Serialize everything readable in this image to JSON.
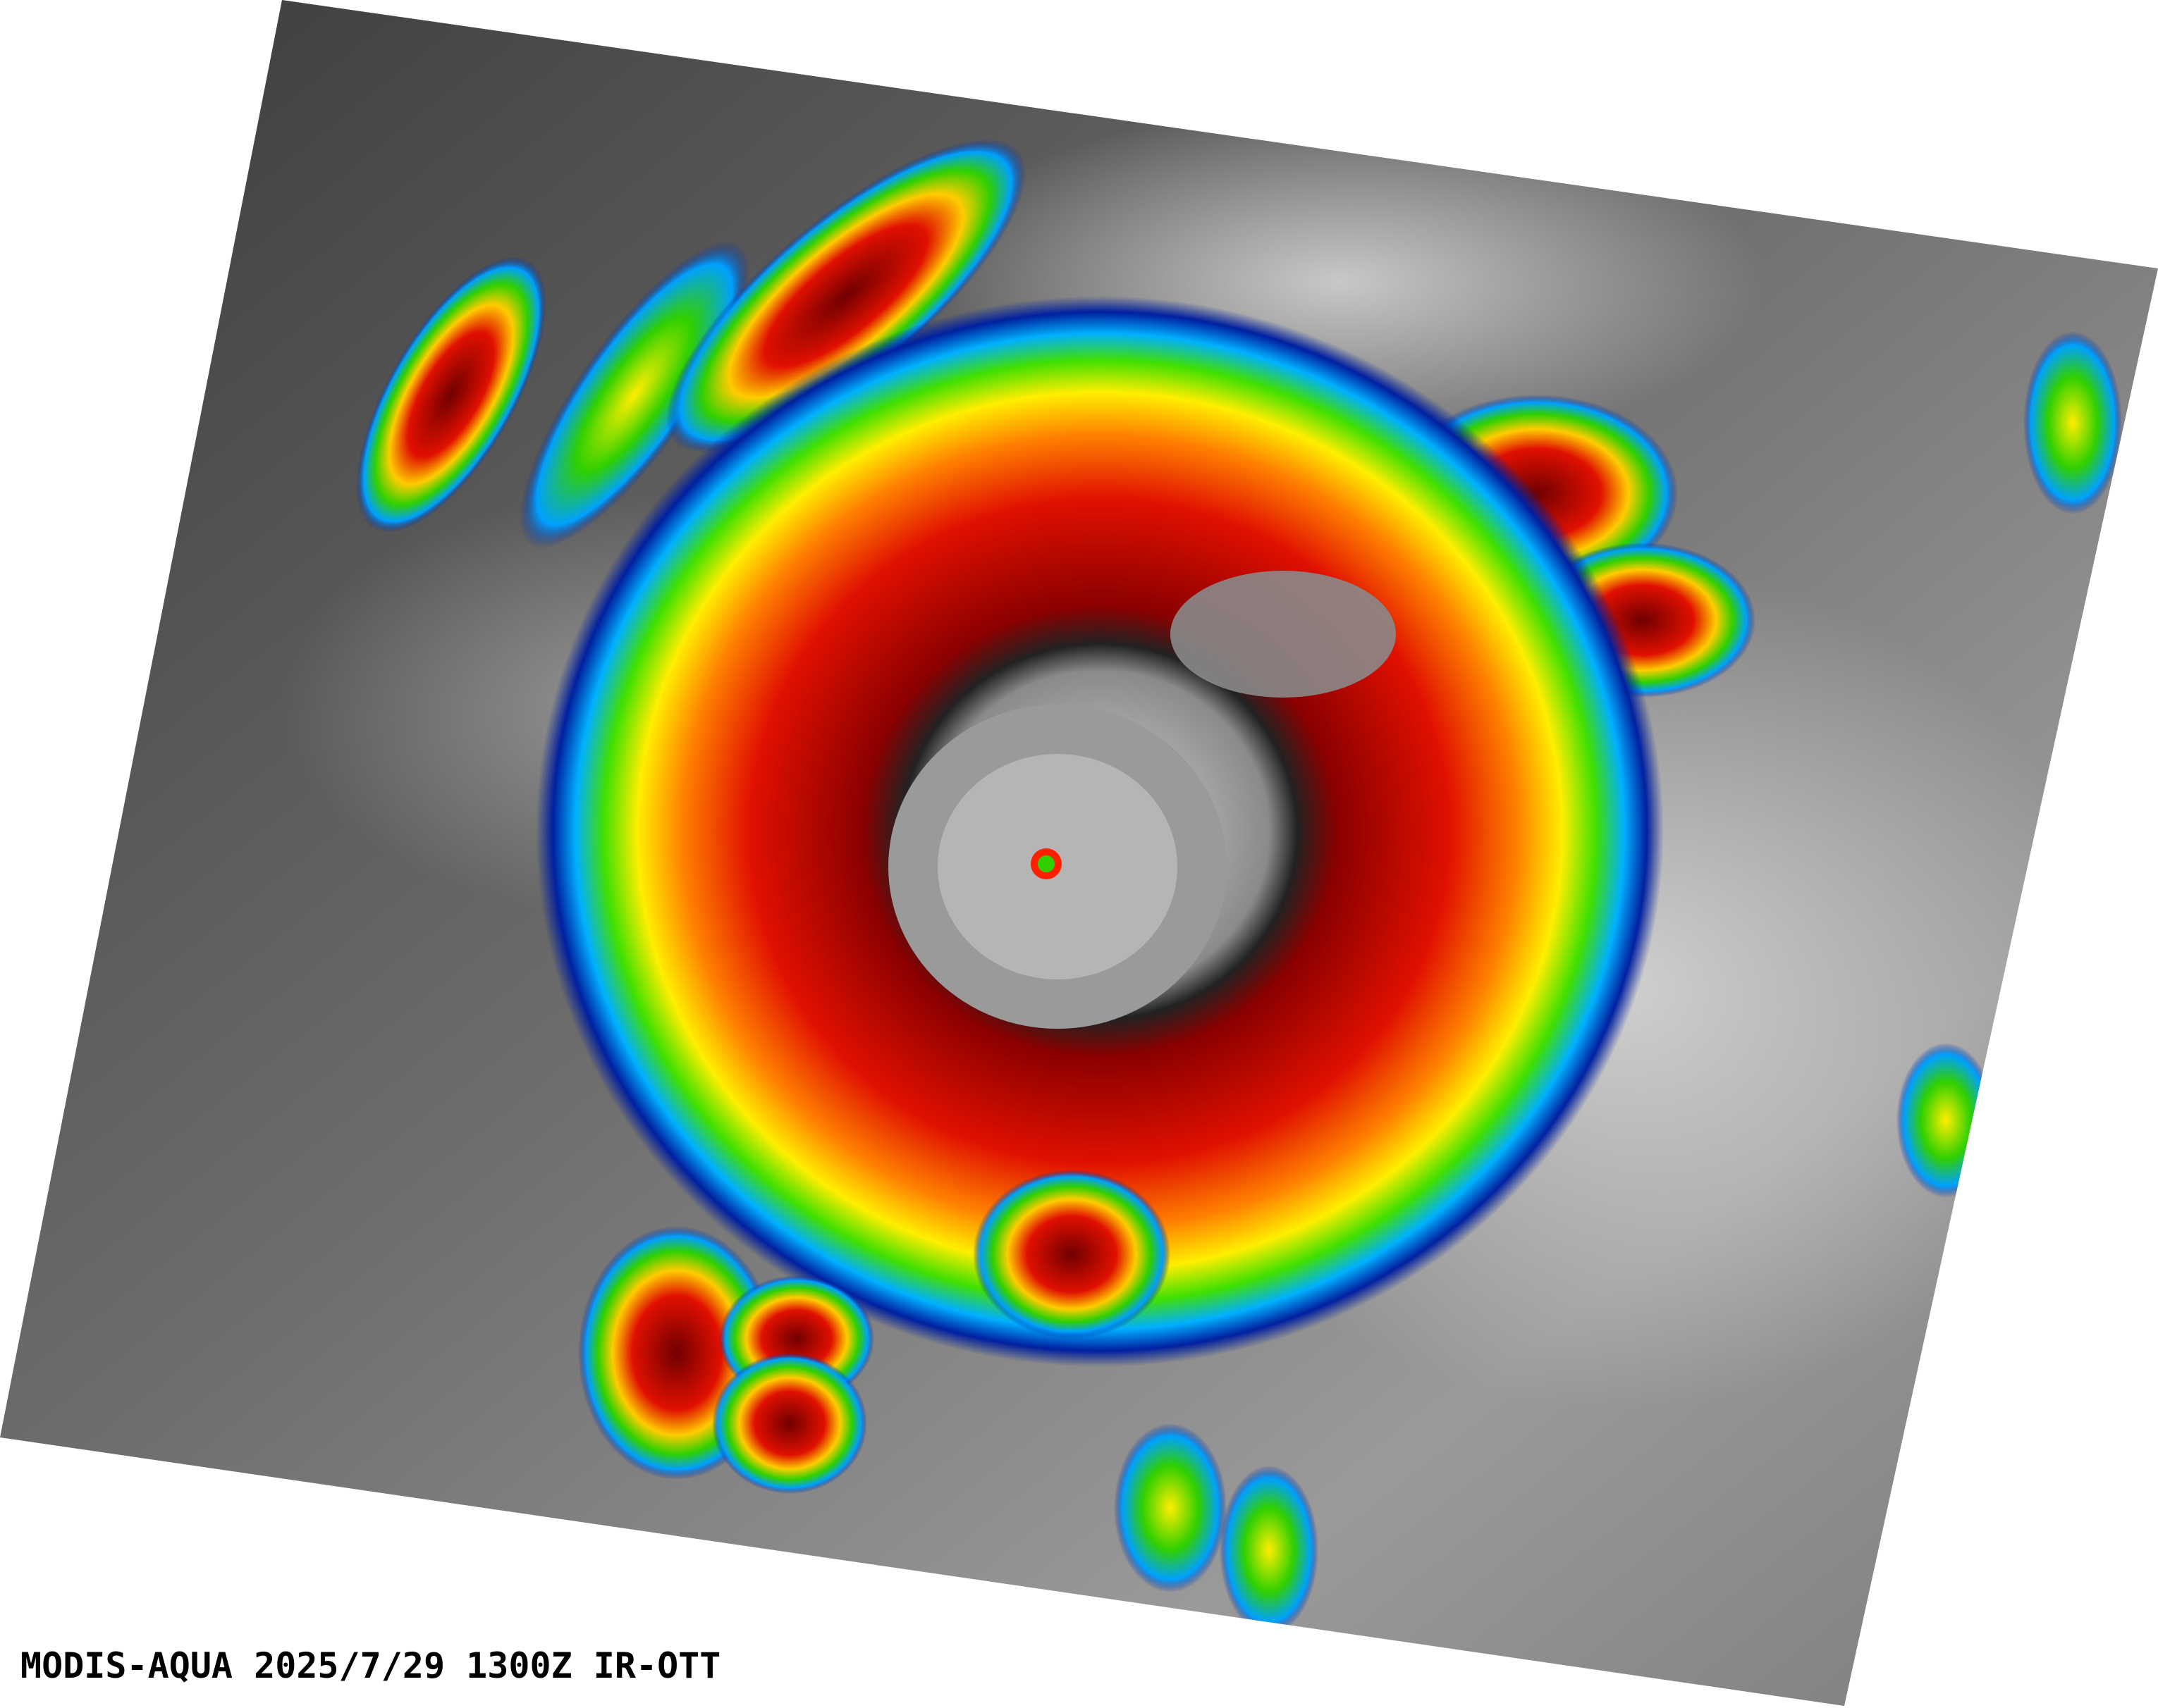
{
  "caption": "MODIS-AQUA 2025/7/29 1300Z IR-OTT"
}
